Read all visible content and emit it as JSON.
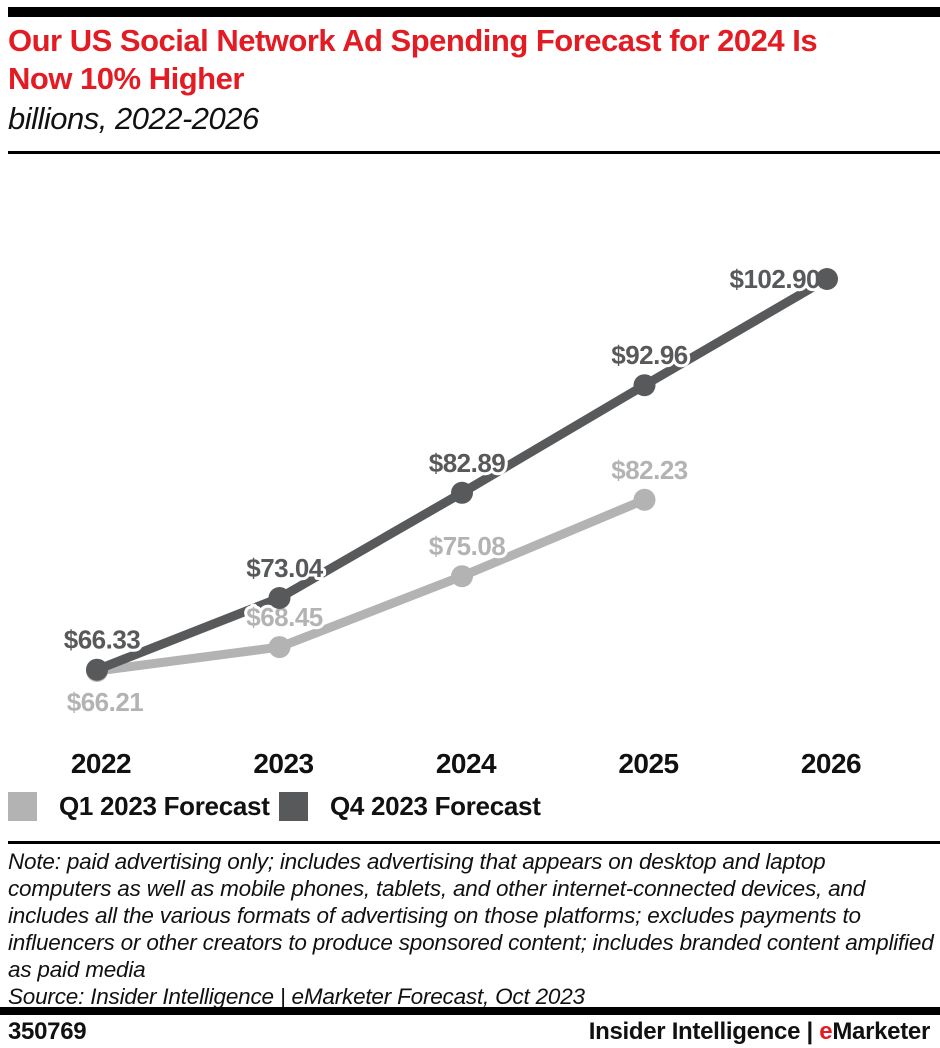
{
  "header": {
    "title": "Our US Social Network Ad Spending Forecast for 2024 Is Now 10% Higher",
    "subtitle": "billions, 2022-2026"
  },
  "colors": {
    "red": "#e31b23",
    "dark_gray": "#58595b",
    "light_gray": "#b3b3b3",
    "text_black": "#111111"
  },
  "chart_data": {
    "type": "line",
    "categories": [
      "2022",
      "2023",
      "2024",
      "2025",
      "2026"
    ],
    "series": [
      {
        "name": "Q1 2023 Forecast",
        "color": "#b3b3b3",
        "values": [
          66.21,
          68.45,
          75.08,
          82.23,
          null
        ],
        "labels": [
          "$66.21",
          "$68.45",
          "$75.08",
          "$82.23",
          null
        ],
        "label_positions": [
          "below",
          "above",
          "above",
          "above",
          null
        ]
      },
      {
        "name": "Q4 2023 Forecast",
        "color": "#58595b",
        "values": [
          66.33,
          73.04,
          82.89,
          92.96,
          102.9
        ],
        "labels": [
          "$66.33",
          "$73.04",
          "$82.89",
          "$92.96",
          "$102.90"
        ],
        "label_positions": [
          "above",
          "above",
          "above",
          "above",
          "left"
        ]
      }
    ],
    "title": "Our US Social Network Ad Spending Forecast for 2024 Is Now 10% Higher",
    "xlabel": "",
    "ylabel": "billions",
    "ylim": [
      60,
      108
    ],
    "grid": false,
    "legend_position": "bottom-left",
    "markers": true,
    "data_labels": true
  },
  "note": {
    "text": "Note: paid advertising only; includes advertising that appears on desktop and laptop computers as well as mobile phones, tablets, and other internet-connected devices, and includes all the various formats of advertising on those platforms; excludes payments to influencers or other creators to produce sponsored content; includes branded content amplified as paid media",
    "source": "Source: Insider Intelligence | eMarketer Forecast, Oct 2023"
  },
  "footer": {
    "chart_id": "350769",
    "brand_left": "Insider Intelligence | ",
    "brand_e": "e",
    "brand_rest": "Marketer"
  }
}
